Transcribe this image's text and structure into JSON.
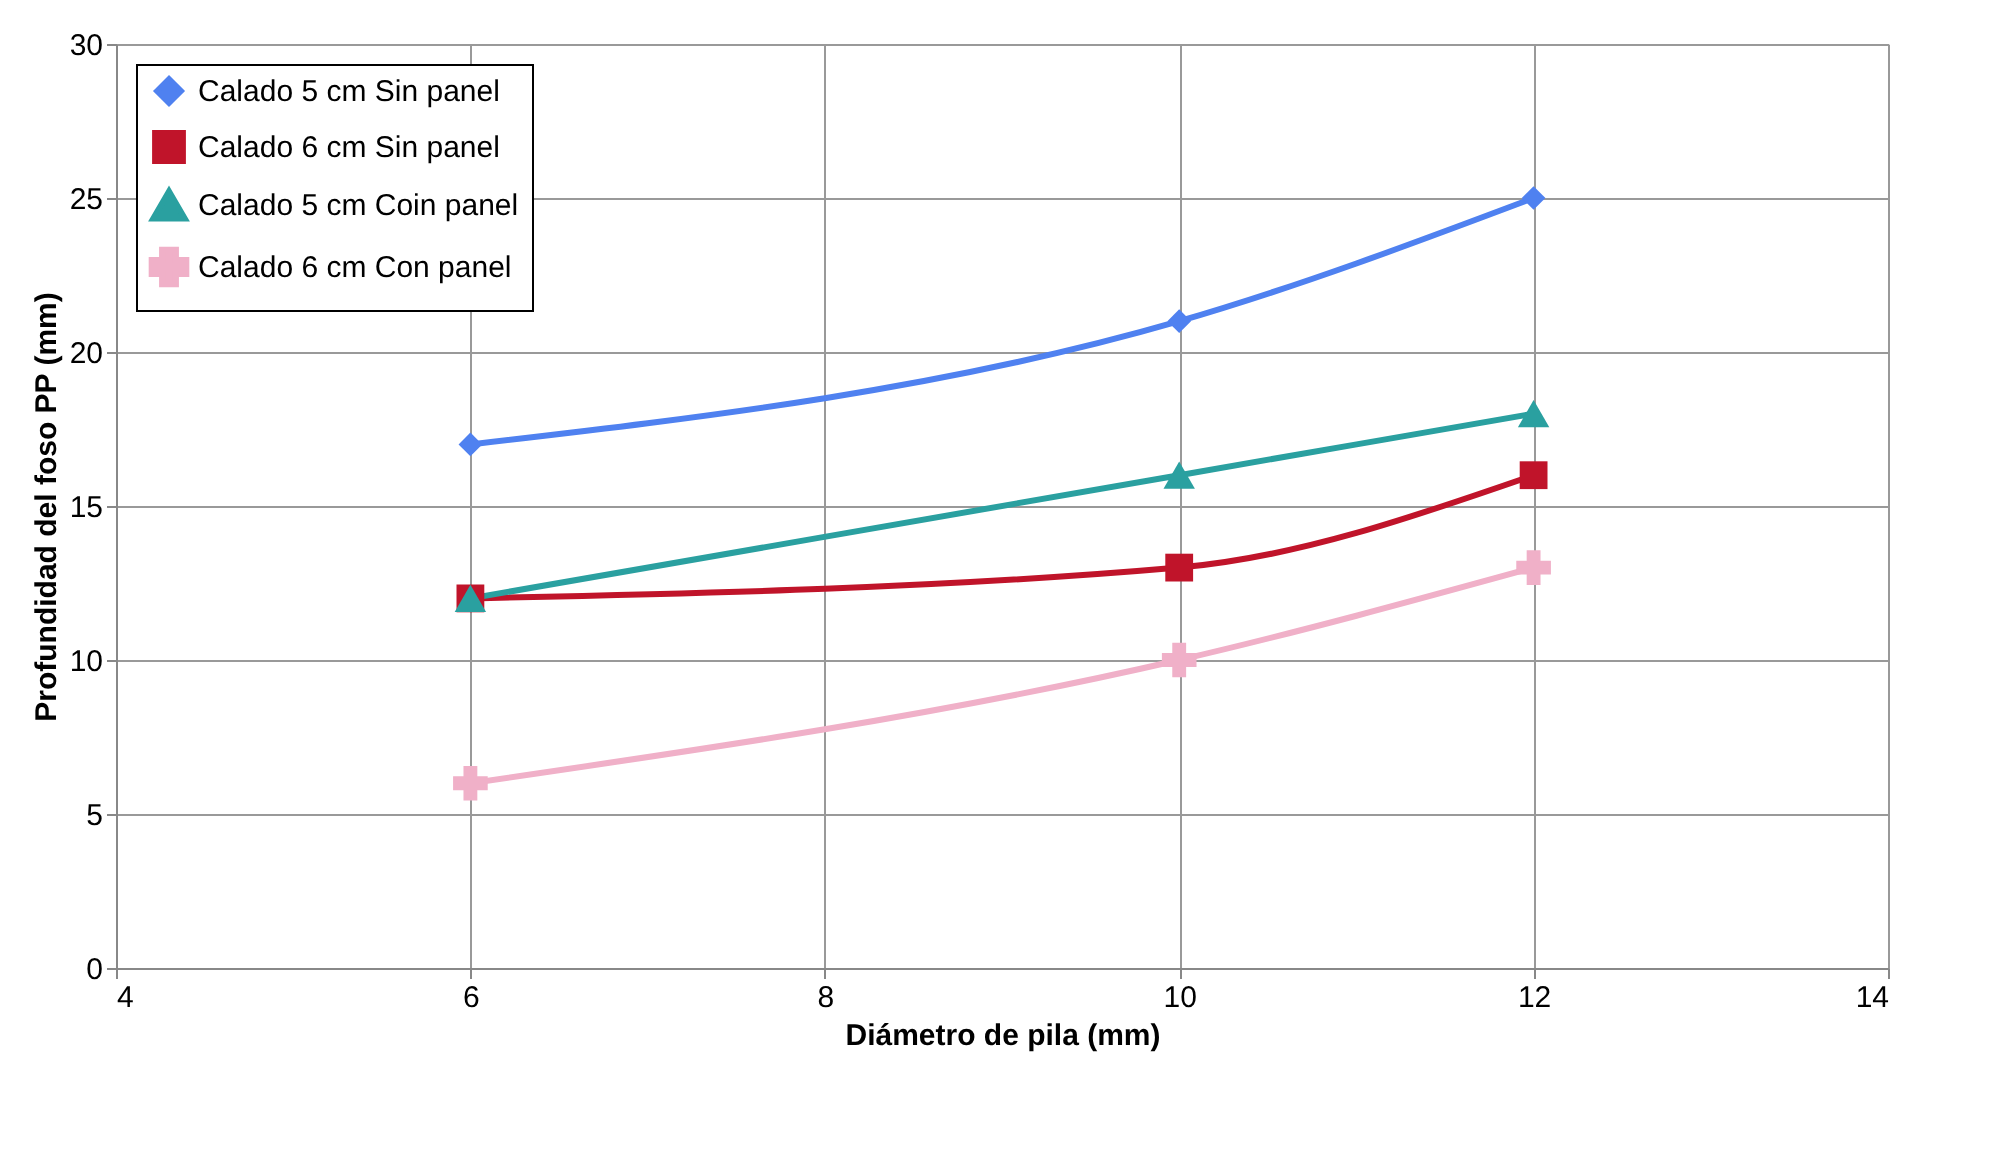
{
  "chart_data": {
    "type": "line",
    "xlabel": "Diámetro de pila (mm)",
    "ylabel": "Profundidad del foso PP (mm)",
    "x": [
      6,
      10,
      12
    ],
    "series": [
      {
        "name": "Calado 5 cm Sin panel",
        "color": "#4f81f0",
        "values": [
          17,
          21,
          25
        ],
        "marker": "diamond"
      },
      {
        "name": "Calado 6 cm Sin panel",
        "color": "#c0142a",
        "values": [
          12,
          13,
          16
        ],
        "marker": "square"
      },
      {
        "name": "Calado 5 cm Coin panel",
        "color": "#2aa0a0",
        "values": [
          12,
          16,
          18
        ],
        "marker": "triangle"
      },
      {
        "name": "Calado 6 cm Con panel",
        "color": "#f0b0c8",
        "values": [
          6,
          10,
          13
        ],
        "marker": "cross"
      }
    ],
    "xlim": [
      4,
      14
    ],
    "xticks": [
      4,
      6,
      8,
      10,
      12,
      14
    ],
    "ylim": [
      0,
      30
    ],
    "yticks": [
      0,
      5,
      10,
      15,
      20,
      25,
      30
    ],
    "grid": true,
    "legend": "top left",
    "line_style": "solid"
  }
}
